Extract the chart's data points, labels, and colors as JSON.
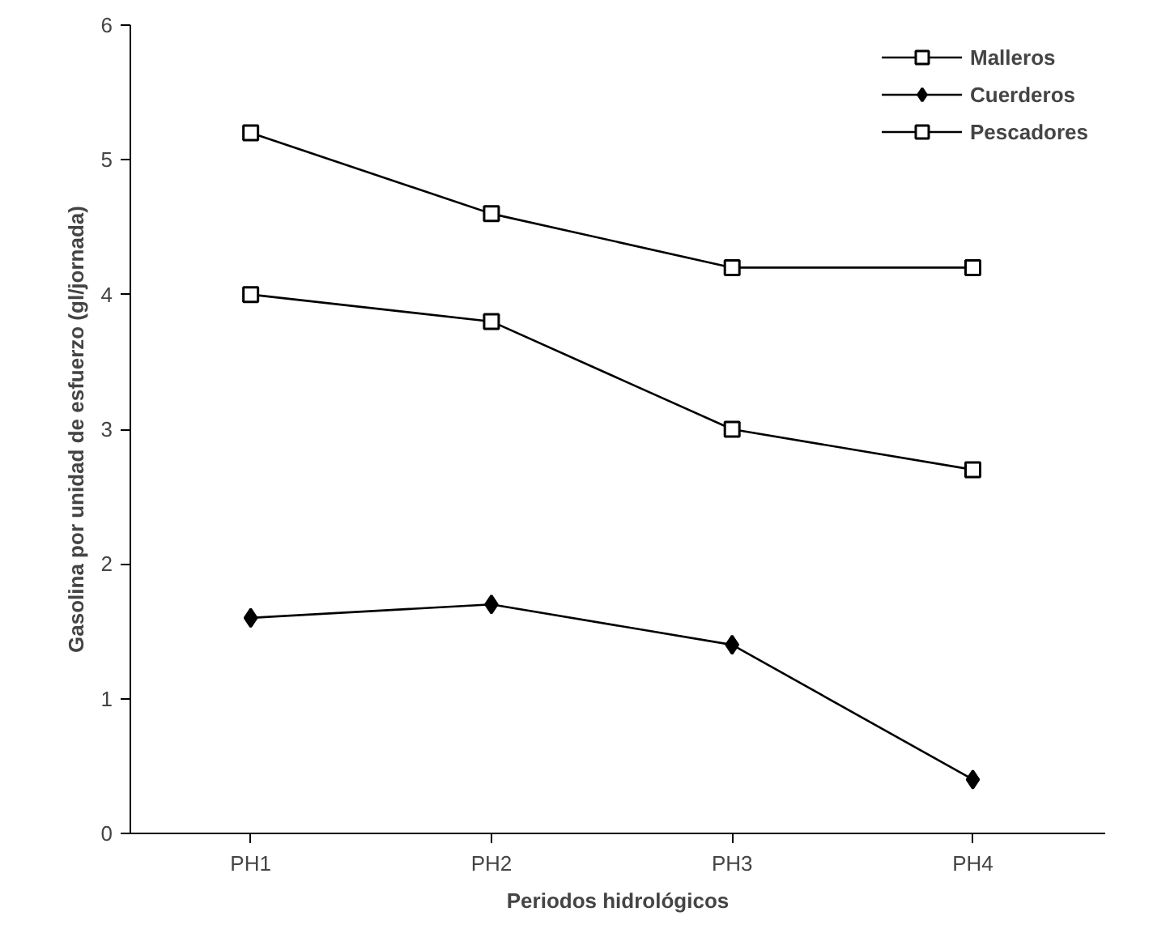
{
  "chart_data": {
    "type": "line",
    "xlabel": "Periodos hidrológicos",
    "ylabel": "Gasolina por unidad de esfuerzo (gl/jornada)",
    "categories": [
      "PH1",
      "PH2",
      "PH3",
      "PH4"
    ],
    "series": [
      {
        "name": "Malleros",
        "color": "#000000",
        "marker": "square",
        "values": [
          5.2,
          4.6,
          4.2,
          4.2
        ]
      },
      {
        "name": "Cuerderos",
        "color": "#000000",
        "marker": "diamond",
        "values": [
          1.6,
          1.7,
          1.4,
          0.4
        ]
      },
      {
        "name": "Pescadores",
        "color": "#000000",
        "marker": "square",
        "values": [
          4.0,
          3.8,
          3.0,
          2.7
        ]
      }
    ],
    "ylim": [
      0,
      6
    ],
    "yticks": [
      0,
      1,
      2,
      3,
      4,
      5,
      6
    ],
    "grid": false,
    "legend": "top right",
    "line_style": "solid"
  }
}
